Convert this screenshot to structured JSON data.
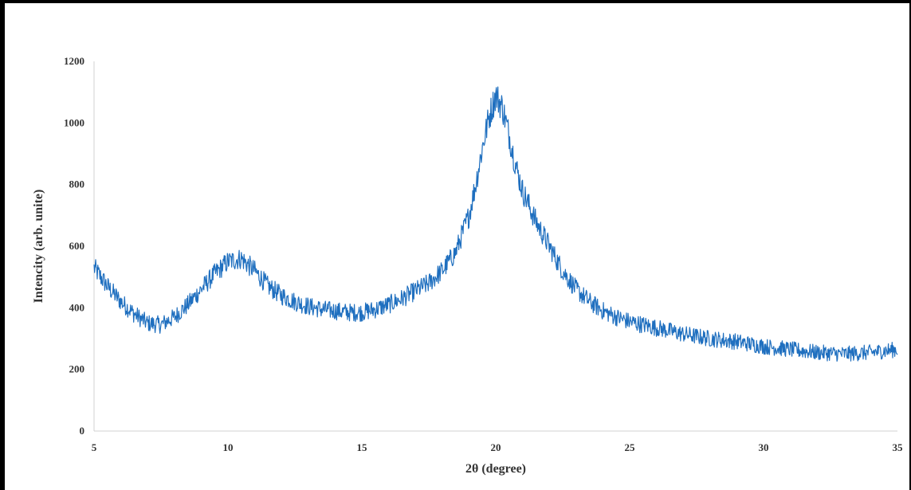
{
  "chart_data": {
    "type": "line",
    "title": "",
    "xlabel": "2θ (degree)",
    "ylabel": "Intencity (arb. unite)",
    "xlim": [
      5,
      35
    ],
    "ylim": [
      0,
      1200
    ],
    "x_ticks": [
      5,
      10,
      15,
      20,
      25,
      30,
      35
    ],
    "y_ticks": [
      0,
      200,
      400,
      600,
      800,
      1000,
      1200
    ],
    "grid": false,
    "legend": "none",
    "series": [
      {
        "color": "#1f6fbf",
        "x": [
          5.0,
          5.5,
          6.0,
          6.5,
          7.0,
          7.5,
          8.0,
          8.5,
          9.0,
          9.5,
          10.0,
          10.5,
          11.0,
          11.5,
          12.0,
          12.5,
          13.0,
          13.5,
          14.0,
          14.5,
          15.0,
          15.5,
          16.0,
          16.5,
          17.0,
          17.5,
          18.0,
          18.5,
          19.0,
          19.25,
          19.5,
          19.75,
          20.0,
          20.25,
          20.5,
          20.75,
          21.0,
          21.5,
          22.0,
          22.5,
          23.0,
          23.5,
          24.0,
          24.5,
          25.0,
          25.5,
          26.0,
          27.0,
          28.0,
          29.0,
          30.0,
          31.0,
          32.0,
          33.0,
          34.0,
          35.0
        ],
        "y": [
          530,
          470,
          420,
          380,
          350,
          345,
          370,
          410,
          460,
          510,
          550,
          560,
          520,
          470,
          440,
          420,
          405,
          395,
          390,
          385,
          385,
          395,
          410,
          430,
          455,
          480,
          520,
          580,
          700,
          800,
          920,
          1020,
          1090,
          1050,
          960,
          860,
          780,
          680,
          600,
          520,
          460,
          420,
          390,
          370,
          355,
          345,
          335,
          315,
          300,
          290,
          275,
          265,
          255,
          250,
          255,
          265
        ]
      }
    ]
  }
}
